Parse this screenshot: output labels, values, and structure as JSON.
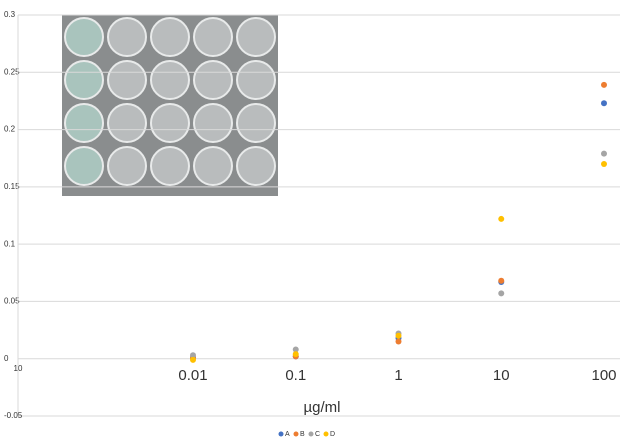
{
  "chart_data": {
    "type": "scatter",
    "categories": [
      "0.01",
      "0.1",
      "1",
      "10",
      "100"
    ],
    "x_origin_label": "10",
    "xlabel": "µg/ml",
    "series": [
      {
        "name": "A",
        "color": "#4472c4",
        "values": [
          0.001,
          0.002,
          0.018,
          0.067,
          0.223
        ]
      },
      {
        "name": "B",
        "color": "#ed7d31",
        "values": [
          0.001,
          0.002,
          0.015,
          0.068,
          0.239
        ]
      },
      {
        "name": "C",
        "color": "#a5a5a5",
        "values": [
          0.003,
          0.008,
          0.022,
          0.057,
          0.179
        ]
      },
      {
        "name": "D",
        "color": "#ffc000",
        "values": [
          -0.001,
          0.004,
          0.02,
          0.122,
          0.17
        ]
      }
    ],
    "ylim": [
      -0.05,
      0.3
    ],
    "yticks": [
      -0.05,
      0,
      0.05,
      0.1,
      0.15,
      0.2,
      0.25,
      0.3
    ],
    "grid": true
  }
}
